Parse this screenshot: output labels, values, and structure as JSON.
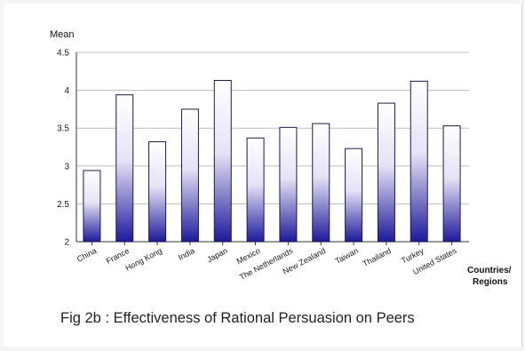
{
  "chart_data": {
    "type": "bar",
    "title": "Fig 2b : Effectiveness of Rational Persuasion on Peers",
    "ylabel": "Mean",
    "xlabel": [
      "Countries/",
      "Regions"
    ],
    "categories": [
      "China",
      "France",
      "Hong Kong",
      "India",
      "Japan",
      "Mexico",
      "The Netherlands",
      "New Zealand",
      "Taiwan",
      "Thailand",
      "Turkey",
      "United States"
    ],
    "values": [
      2.94,
      3.94,
      3.32,
      3.75,
      4.13,
      3.37,
      3.51,
      3.56,
      3.23,
      3.83,
      4.12,
      3.53
    ],
    "ylim": [
      2,
      4.5
    ],
    "yticks": [
      "2",
      "2.5",
      "3",
      "3.5",
      "4",
      "4.5"
    ],
    "grid": true,
    "legend": "none",
    "colors": {
      "bar_top": "#ffffff",
      "bar_bottom": "#1c1a9a",
      "grid": "#bdbdbd",
      "axis": "#333333"
    }
  }
}
